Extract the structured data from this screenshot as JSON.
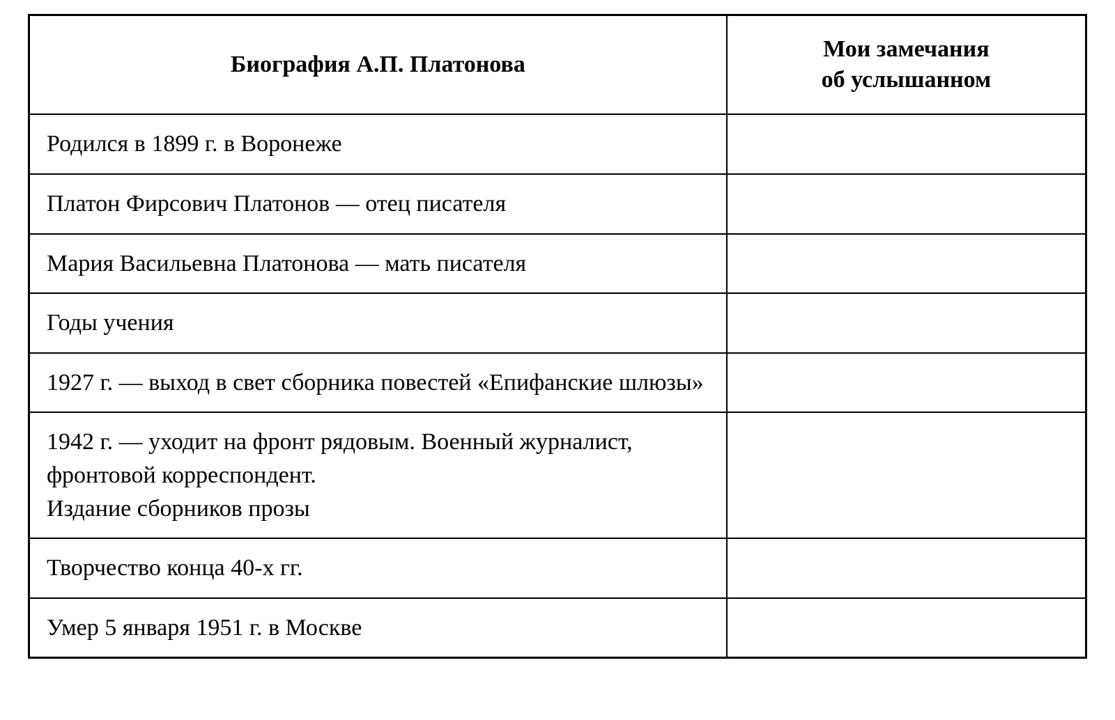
{
  "table": {
    "headers": {
      "biography": "Биография А.П. Платонова",
      "notes_line1": "Мои замечания",
      "notes_line2": "об услышанном"
    },
    "rows": [
      {
        "biography": "Родился в 1899 г. в Воронеже",
        "notes": ""
      },
      {
        "biography": "Платон Фирсович Платонов — отец писателя",
        "notes": ""
      },
      {
        "biography": "Мария Васильевна Платонова — мать писателя",
        "notes": ""
      },
      {
        "biography": "Годы учения",
        "notes": ""
      },
      {
        "biography": "1927 г. — выход в свет сборника повестей «Епифанские шлюзы»",
        "notes": ""
      },
      {
        "biography": "1942 г. — уходит на фронт рядовым. Военный журналист, фронтовой корреспондент.\nИздание сборников прозы",
        "notes": ""
      },
      {
        "biography": "Творчество конца 40-х гг.",
        "notes": ""
      },
      {
        "biography": "Умер 5 января 1951 г. в Москве",
        "notes": ""
      }
    ],
    "styling": {
      "border_color": "#000000",
      "border_width_outer": 3,
      "border_width_inner": 2,
      "background_color": "#ffffff",
      "text_color": "#000000",
      "font_family": "Times New Roman",
      "font_size": 34,
      "header_font_weight": "bold",
      "cell_padding": "18px 24px",
      "header_padding": "26px 24px",
      "col_biography_width": "66%",
      "col_notes_width": "34%"
    }
  }
}
